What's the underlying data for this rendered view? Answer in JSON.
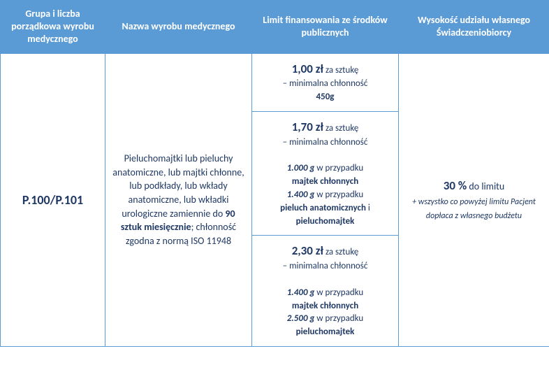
{
  "headers": {
    "col1": "Grupa i liczba porządkowa wyrobu medycznego",
    "col2": "Nazwa wyrobu medycznego",
    "col3": "Limit finansowania ze środków publicznych",
    "col4": "Wysokość udziału własnego Świadczeniobiorcy"
  },
  "row": {
    "code": "P.100/P.101",
    "description_pre": "Pieluchomajtki lub pieluchy anatomiczne, lub majtki chłonne, lub podkłady, lub wkłady anatomiczne, lub wkładki urologiczne zamiennie do ",
    "description_bold": "90 sztuk miesięcznie",
    "description_post": "; chłonność zgodna z normą ISO 11948",
    "limits": [
      {
        "price": "1,00 zł",
        "per": " za sztukę",
        "line2": "– minimalna chłonność",
        "line3_bold": "450g"
      },
      {
        "price": "1,70 zł",
        "per": " za sztukę",
        "line2": "– minimalna chłonność",
        "spec1_val": "1.000 g",
        "spec1_txt": " w przypadku ",
        "spec1_bold": "majtek chłonnych",
        "spec2_val": "1.400 g",
        "spec2_txt": " w przypadku ",
        "spec2_bold1": "pieluch anatomicznych",
        "spec2_and": " i ",
        "spec2_bold2": "pieluchomajtek"
      },
      {
        "price": "2,30 zł",
        "per": " za sztukę",
        "line2": "– minimalna chłonność",
        "spec1_val": "1.400 g",
        "spec1_txt": " w przypadku ",
        "spec1_bold": "majtek chłonnych",
        "spec2_val": "2.500 g",
        "spec2_txt": " w przypadku ",
        "spec2_bold": "pieluchomajtek"
      }
    ],
    "percent": "30 %",
    "percent_txt": " do limitu",
    "percent_note": "+ wszystko co powyżej limitu Pacjent dopłaca z własnego budżetu"
  },
  "colors": {
    "header_bg": "#5b9bd5",
    "header_text": "#ffffff",
    "border": "#5b9bd5",
    "text": "#1f3864"
  }
}
